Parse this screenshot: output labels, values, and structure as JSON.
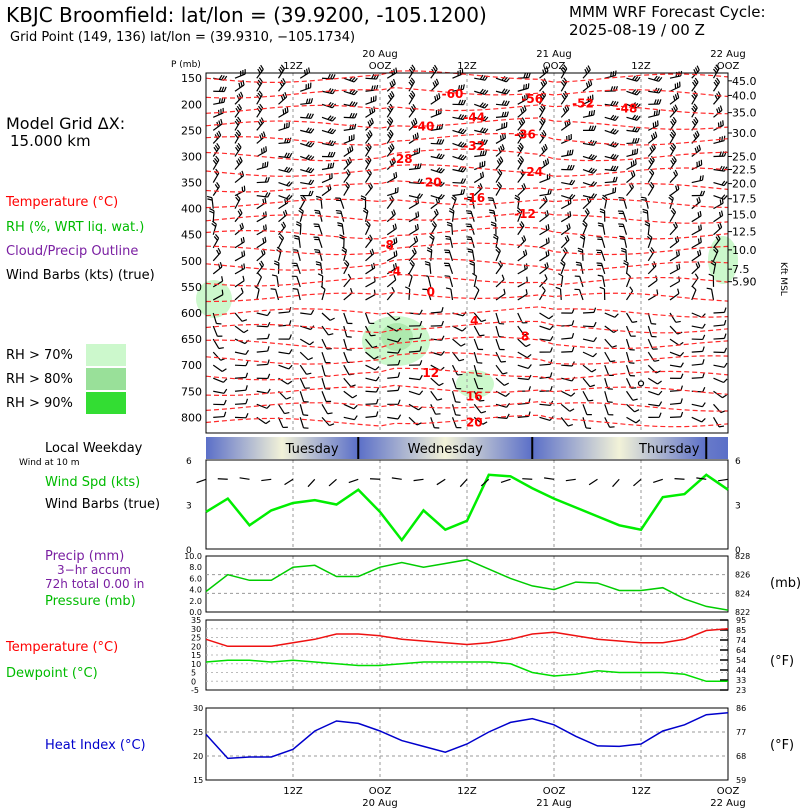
{
  "header": {
    "title": "KBJC Broomfield:  lat/lon = (39.9200, -105.1200)",
    "grid_point": "Grid Point (149, 136) lat/lon = (39.9310, −105.1734)",
    "cycle_title": "MMM WRF Forecast Cycle:",
    "cycle_date": "2025-08-19 / 00  Z"
  },
  "sidebar": {
    "grid_dx_label": "Model Grid ΔX:",
    "grid_dx_value": "15.000 km",
    "legend": {
      "temperature": "Temperature (°C)",
      "rh": "RH (%, WRT liq. wat.)",
      "cloud": "Cloud/Precip Outline",
      "wind": "Wind Barbs (kts) (true)"
    },
    "rh_levels": [
      "RH > 70%",
      "RH > 80%",
      "RH > 90%"
    ],
    "local_weekday": "Local Weekday",
    "wind_at_10m": "Wind at 10 m",
    "panel2": [
      "Wind Spd (kts)",
      "Wind Barbs (true)"
    ],
    "panel3": [
      "Precip (mm)",
      "3−hr accum",
      "72h total 0.00 in",
      "Pressure (mb)"
    ],
    "panel4": [
      "Temperature (°C)",
      "Dewpoint (°C)"
    ],
    "panel5": [
      "Heat Index (°C)"
    ],
    "units": {
      "mb": "(mb)",
      "f1": "(°F)",
      "f2": "(°F)",
      "kft": "Kft MSL"
    }
  },
  "chart_data": [
    {
      "type": "line",
      "name": "profile",
      "y_axis_title": "P (mb)",
      "pressure_ticks": [
        150,
        200,
        250,
        300,
        350,
        400,
        450,
        500,
        550,
        600,
        650,
        700,
        750,
        800
      ],
      "kft_ticks": [
        {
          "label": "45.0",
          "p": 155
        },
        {
          "label": "40.0",
          "p": 183
        },
        {
          "label": "35.0",
          "p": 216
        },
        {
          "label": "30.0",
          "p": 255
        },
        {
          "label": "25.0",
          "p": 300
        },
        {
          "label": "22.5",
          "p": 325
        },
        {
          "label": "20.0",
          "p": 352
        },
        {
          "label": "17.5",
          "p": 381
        },
        {
          "label": "15.0",
          "p": 411
        },
        {
          "label": "12.5",
          "p": 444
        },
        {
          "label": "10.0",
          "p": 479
        },
        {
          "label": "7.5",
          "p": 516
        },
        {
          "label": "5.90",
          "p": 540
        }
      ],
      "top_time_labels": [
        "12Z",
        "OOZ",
        "12Z",
        "OOZ",
        "12Z",
        "OOZ"
      ],
      "top_date_labels": [
        "20 Aug",
        "21 Aug",
        "22 Aug"
      ],
      "temperature_labels": [
        {
          "text": "-60",
          "hour": 34,
          "p": 180
        },
        {
          "text": "-56",
          "hour": 45,
          "p": 190
        },
        {
          "text": "-52",
          "hour": 52,
          "p": 198
        },
        {
          "text": "-48",
          "hour": 58,
          "p": 208
        },
        {
          "text": "-44",
          "hour": 37,
          "p": 225
        },
        {
          "text": "-40",
          "hour": 30,
          "p": 243
        },
        {
          "text": "-36",
          "hour": 44,
          "p": 258
        },
        {
          "text": "-32",
          "hour": 37,
          "p": 280
        },
        {
          "text": "-28",
          "hour": 27,
          "p": 305
        },
        {
          "text": "-24",
          "hour": 45,
          "p": 330
        },
        {
          "text": "-20",
          "hour": 31,
          "p": 350
        },
        {
          "text": "-16",
          "hour": 37,
          "p": 380
        },
        {
          "text": "-12",
          "hour": 44,
          "p": 410
        },
        {
          "text": "-8",
          "hour": 25,
          "p": 470
        },
        {
          "text": "-4",
          "hour": 26,
          "p": 520
        },
        {
          "text": "0",
          "hour": 31,
          "p": 560
        },
        {
          "text": "4",
          "hour": 37,
          "p": 615
        },
        {
          "text": "8",
          "hour": 44,
          "p": 645
        },
        {
          "text": "12",
          "hour": 31,
          "p": 715
        },
        {
          "text": "16",
          "hour": 37,
          "p": 760
        },
        {
          "text": "20",
          "hour": 37,
          "p": 810
        }
      ]
    },
    {
      "type": "line",
      "name": "weekday",
      "days": [
        "Tuesday",
        "Wednesday",
        "Thursday"
      ]
    },
    {
      "type": "line",
      "name": "wind_speed",
      "x_hours": [
        0,
        3,
        6,
        9,
        12,
        15,
        18,
        21,
        24,
        27,
        30,
        33,
        36,
        39,
        42,
        45,
        48,
        51,
        54,
        57,
        60,
        63,
        66,
        69,
        72
      ],
      "values": [
        2.5,
        3.4,
        1.6,
        2.6,
        3.1,
        3.3,
        3.0,
        4.0,
        2.5,
        0.6,
        2.6,
        1.3,
        1.9,
        5.0,
        4.9,
        4.1,
        3.4,
        2.8,
        2.2,
        1.6,
        1.3,
        3.5,
        3.7,
        5.0,
        4.0
      ],
      "ylim": [
        0,
        6
      ],
      "y_ticks": [
        0,
        3,
        6
      ]
    },
    {
      "type": "line",
      "name": "precip_pressure",
      "x_hours": [
        0,
        3,
        6,
        9,
        12,
        15,
        18,
        21,
        24,
        27,
        30,
        33,
        36,
        39,
        42,
        45,
        48,
        51,
        54,
        57,
        60,
        63,
        66,
        69,
        72
      ],
      "pressure_mb": [
        824.2,
        826.0,
        825.4,
        825.4,
        826.8,
        827.0,
        825.8,
        825.8,
        826.8,
        827.3,
        826.8,
        827.2,
        827.6,
        826.6,
        825.6,
        824.8,
        824.4,
        825.2,
        825.1,
        824.3,
        824.3,
        824.6,
        823.4,
        822.6,
        822.2
      ],
      "precip_ticks": [
        "0.0",
        "2.0",
        "4.0",
        "6.0",
        "8.0",
        "10.0"
      ],
      "pressure_ticks": [
        822,
        824,
        826,
        828
      ],
      "pressure_lim": [
        822,
        828
      ]
    },
    {
      "type": "line",
      "name": "temperature_dewpoint",
      "x_hours": [
        0,
        3,
        6,
        9,
        12,
        15,
        18,
        21,
        24,
        27,
        30,
        33,
        36,
        39,
        42,
        45,
        48,
        51,
        54,
        57,
        60,
        63,
        66,
        69,
        72
      ],
      "temperature_c": [
        24,
        20,
        20,
        20,
        22,
        24,
        27,
        27,
        26,
        24,
        23,
        22,
        21,
        22,
        24,
        27,
        28,
        26,
        24,
        23,
        22,
        22,
        24,
        29,
        30
      ],
      "dewpoint_c": [
        11,
        12,
        12,
        11,
        12,
        11,
        10,
        9,
        9,
        10,
        11,
        11,
        11,
        11,
        10,
        5,
        3,
        4,
        6,
        5,
        5,
        5,
        4,
        0,
        0
      ],
      "ylim_c": [
        -5,
        35
      ],
      "y_ticks_c": [
        -5,
        0,
        5,
        10,
        15,
        20,
        25,
        30,
        35
      ],
      "y_ticks_f": [
        "23",
        "33",
        "44",
        "54",
        "64",
        "74",
        "85",
        "95"
      ]
    },
    {
      "type": "line",
      "name": "heat_index",
      "x_hours": [
        0,
        3,
        6,
        9,
        12,
        15,
        18,
        21,
        24,
        27,
        30,
        33,
        36,
        39,
        42,
        45,
        48,
        51,
        54,
        57,
        60,
        63,
        66,
        69,
        72
      ],
      "values_c": [
        24.5,
        19.5,
        19.8,
        19.8,
        21.4,
        25.2,
        27.3,
        26.8,
        25.2,
        23.2,
        22.0,
        20.8,
        22.5,
        25.0,
        27.0,
        27.8,
        26.5,
        24.1,
        22.1,
        22.0,
        22.5,
        25.2,
        26.5,
        28.6,
        29.0
      ],
      "ylim_c": [
        15,
        30
      ],
      "y_ticks_c": [
        15,
        20,
        25,
        30
      ],
      "y_ticks_f": [
        "59",
        "68",
        "77",
        "86"
      ],
      "bottom_time_labels": [
        "12Z",
        "OOZ",
        "12Z",
        "OOZ",
        "12Z",
        "OOZ"
      ],
      "bottom_date_labels": [
        "20 Aug",
        "21 Aug",
        "22 Aug"
      ]
    }
  ]
}
